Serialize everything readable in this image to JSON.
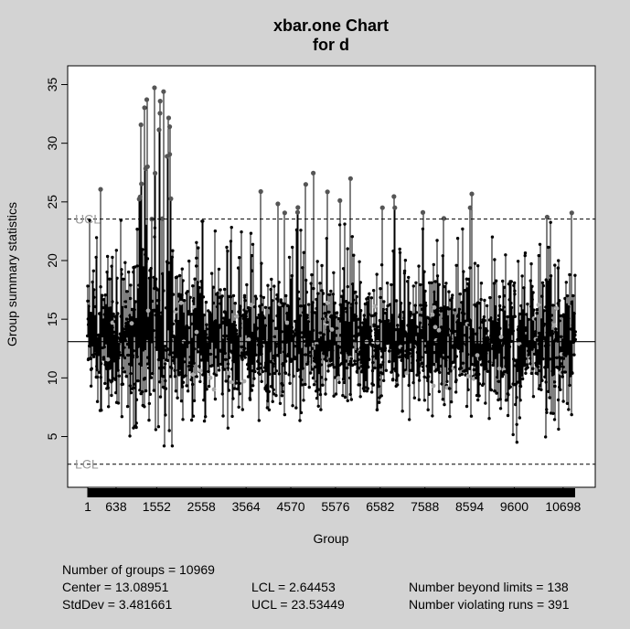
{
  "chart_data": {
    "type": "scatter",
    "title": "xbar.one Chart",
    "subtitle": "for d",
    "xlabel": "Group",
    "ylabel": "Group summary statistics",
    "xlim": [
      1,
      10969
    ],
    "ylim": [
      3.5,
      36
    ],
    "x_ticks": [
      1,
      638,
      1552,
      2558,
      3564,
      4570,
      5576,
      6582,
      7588,
      8594,
      9600,
      10698
    ],
    "y_ticks": [
      5,
      10,
      15,
      20,
      25,
      30,
      35
    ],
    "center": 13.08951,
    "ucl": 23.53449,
    "lcl": 2.64453,
    "ucl_label": "UCL",
    "lcl_label": "LCL",
    "colors": {
      "background": "#d3d3d3",
      "plot_bg": "#ffffff",
      "points": "#000000",
      "beyond_limits": "#555555",
      "violating_runs": "#a9a9a9",
      "limit_label": "#9a9a9a"
    },
    "n_groups": 10969,
    "beyond_limits_count": 138,
    "violating_runs_count": 391
  },
  "stats": {
    "groups": "Number of groups = 10969",
    "center": "Center = 13.08951",
    "stddev": "StdDev = 3.481661",
    "lcl": "LCL = 2.64453",
    "ucl": "UCL = 23.53449",
    "beyond": "Number beyond limits = 138",
    "runs": "Number violating runs = 391"
  }
}
